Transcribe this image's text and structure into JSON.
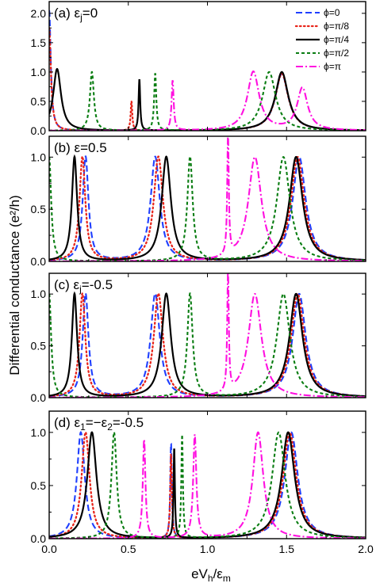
{
  "figure": {
    "ylabel": "Differential conductance (e²/h)",
    "xlabel_parts": {
      "main": "eV",
      "sub1": "h",
      "slash": "/ε",
      "sub2": "m"
    }
  },
  "colors": {
    "phi0": "#1f3fff",
    "phi_pi8": "#e8241a",
    "phi_pi4": "#000000",
    "phi_pi2": "#0a7d12",
    "phi_pi": "#ff10e0"
  },
  "chart_data": [
    {
      "type": "line",
      "panel_label": "(a) εj=0",
      "label_parts": {
        "pre": "(a) ε",
        "sub": "j",
        "post": "=0"
      },
      "xlim": [
        0,
        2.0
      ],
      "ylim": [
        0,
        2.2
      ],
      "xticks": [
        0.0,
        0.5,
        1.0,
        1.5,
        2.0
      ],
      "yticks": [
        0.0,
        0.5,
        1.0,
        1.5,
        2.0
      ],
      "xticklabels": [
        "0.0",
        "0.5",
        "1.0",
        "1.5",
        "2.0"
      ],
      "yticklabels": [
        "0.0",
        "0.5",
        "1.0",
        "1.5",
        "2.0"
      ],
      "legend": {
        "placement": "top-right",
        "entries": [
          "ϕ=0",
          "ϕ=π/8",
          "ϕ=π/4",
          "ϕ=π/2",
          "ϕ=π"
        ]
      },
      "series": [
        {
          "name": "ϕ=0",
          "style": "dash",
          "color": "#1f3fff",
          "peaks": [
            [
              0.0,
              2.05,
              0.012
            ],
            [
              1.47,
              0.97,
              0.05
            ]
          ]
        },
        {
          "name": "ϕ=π/8",
          "style": "dot",
          "color": "#e8241a",
          "peaks": [
            [
              0.0,
              1.75,
              0.013
            ],
            [
              0.52,
              0.5,
              0.006
            ],
            [
              1.47,
              0.97,
              0.05
            ]
          ]
        },
        {
          "name": "ϕ=π/4",
          "style": "solid",
          "color": "#000000",
          "peaks": [
            [
              0.05,
              1.05,
              0.03
            ],
            [
              0.57,
              0.87,
              0.006
            ],
            [
              1.47,
              1.0,
              0.05
            ]
          ]
        },
        {
          "name": "ϕ=π/2",
          "style": "dash-short",
          "color": "#0a7d12",
          "peaks": [
            [
              0.27,
              1.0,
              0.015
            ],
            [
              0.67,
              0.97,
              0.008
            ],
            [
              1.39,
              1.0,
              0.05
            ]
          ]
        },
        {
          "name": "ϕ=π",
          "style": "dash-dot",
          "color": "#ff10e0",
          "peaks": [
            [
              0.78,
              0.85,
              0.008
            ],
            [
              1.29,
              1.0,
              0.045
            ],
            [
              1.6,
              0.72,
              0.04
            ]
          ]
        }
      ]
    },
    {
      "type": "line",
      "panel_label": "(b) εj=0.5",
      "label_parts": {
        "pre": "(b) ε",
        "sub": "",
        "post": "=0.5"
      },
      "xlim": [
        0,
        2.0
      ],
      "ylim": [
        0,
        1.2
      ],
      "xticks": [
        0.0,
        0.5,
        1.0,
        1.5,
        2.0
      ],
      "yticks": [
        0.0,
        0.5,
        1.0
      ],
      "xticklabels": [
        "0.0",
        "0.5",
        "1.0",
        "1.5",
        "2.0"
      ],
      "yticklabels": [
        "0.0",
        "0.5",
        "1.0"
      ],
      "series": [
        {
          "name": "ϕ=0",
          "style": "dash",
          "color": "#1f3fff",
          "peaks": [
            [
              0.23,
              1.0,
              0.022
            ],
            [
              0.67,
              1.0,
              0.035
            ],
            [
              1.58,
              1.0,
              0.05
            ]
          ]
        },
        {
          "name": "ϕ=π/8",
          "style": "dot",
          "color": "#e8241a",
          "peaks": [
            [
              0.21,
              1.0,
              0.022
            ],
            [
              0.69,
              1.0,
              0.035
            ],
            [
              1.57,
              1.0,
              0.05
            ]
          ]
        },
        {
          "name": "ϕ=π/4",
          "style": "solid",
          "color": "#000000",
          "peaks": [
            [
              0.16,
              1.0,
              0.02
            ],
            [
              0.74,
              1.0,
              0.035
            ],
            [
              1.56,
              1.0,
              0.05
            ]
          ]
        },
        {
          "name": "ϕ=π/2",
          "style": "dash-short",
          "color": "#0a7d12",
          "peaks": [
            [
              0.0,
              1.0,
              0.015
            ],
            [
              0.89,
              1.0,
              0.02
            ],
            [
              1.48,
              1.0,
              0.05
            ]
          ]
        },
        {
          "name": "ϕ=π",
          "style": "dash-dot",
          "color": "#ff10e0",
          "peaks": [
            [
              1.13,
              1.15,
              0.006
            ],
            [
              1.3,
              1.0,
              0.05
            ]
          ]
        }
      ]
    },
    {
      "type": "line",
      "panel_label": "(c) εj=-0.5",
      "label_parts": {
        "pre": "(c) ε",
        "sub": "j",
        "post": "=-0.5"
      },
      "xlim": [
        0,
        2.0
      ],
      "ylim": [
        0,
        1.2
      ],
      "xticks": [
        0.0,
        0.5,
        1.0,
        1.5,
        2.0
      ],
      "yticks": [
        0.0,
        0.5,
        1.0
      ],
      "xticklabels": [
        "0.0",
        "0.5",
        "1.0",
        "1.5",
        "2.0"
      ],
      "yticklabels": [
        "0.0",
        "0.5",
        "1.0"
      ],
      "series": [
        {
          "name": "ϕ=0",
          "style": "dash",
          "color": "#1f3fff",
          "peaks": [
            [
              0.23,
              1.0,
              0.022
            ],
            [
              0.67,
              1.0,
              0.035
            ],
            [
              1.58,
              1.0,
              0.05
            ]
          ]
        },
        {
          "name": "ϕ=π/8",
          "style": "dot",
          "color": "#e8241a",
          "peaks": [
            [
              0.21,
              1.0,
              0.022
            ],
            [
              0.69,
              1.0,
              0.035
            ],
            [
              1.57,
              1.0,
              0.05
            ]
          ]
        },
        {
          "name": "ϕ=π/4",
          "style": "solid",
          "color": "#000000",
          "peaks": [
            [
              0.16,
              1.0,
              0.02
            ],
            [
              0.74,
              1.0,
              0.035
            ],
            [
              1.56,
              1.0,
              0.05
            ]
          ]
        },
        {
          "name": "ϕ=π/2",
          "style": "dash-short",
          "color": "#0a7d12",
          "peaks": [
            [
              0.0,
              1.0,
              0.015
            ],
            [
              0.89,
              1.0,
              0.02
            ],
            [
              1.48,
              1.0,
              0.05
            ]
          ]
        },
        {
          "name": "ϕ=π",
          "style": "dash-dot",
          "color": "#ff10e0",
          "peaks": [
            [
              1.13,
              1.15,
              0.006
            ],
            [
              1.3,
              1.0,
              0.05
            ]
          ]
        }
      ]
    },
    {
      "type": "line",
      "panel_label": "(d) ε1=-ε2=-0.5",
      "label_parts": {
        "pre": "(d) ε",
        "sub": "1",
        "post": "=−ε",
        "sub2": "2",
        "post2": "=-0.5"
      },
      "xlim": [
        0,
        2.0
      ],
      "ylim": [
        0,
        1.2
      ],
      "xticks": [
        0.0,
        0.5,
        1.0,
        1.5,
        2.0
      ],
      "yticks": [
        0.0,
        0.5,
        1.0
      ],
      "xticklabels": [
        "0.0",
        "0.5",
        "1.0",
        "1.5",
        "2.0"
      ],
      "yticklabels": [
        "0.0",
        "0.5",
        "1.0"
      ],
      "series": [
        {
          "name": "ϕ=0",
          "style": "dash",
          "color": "#1f3fff",
          "peaks": [
            [
              0.2,
              1.0,
              0.03
            ],
            [
              0.77,
              0.9,
              0.006
            ],
            [
              1.53,
              1.0,
              0.05
            ]
          ]
        },
        {
          "name": "ϕ=π/8",
          "style": "dot",
          "color": "#e8241a",
          "peaks": [
            [
              0.23,
              1.0,
              0.03
            ],
            [
              0.77,
              0.8,
              0.006
            ],
            [
              1.52,
              1.0,
              0.05
            ]
          ]
        },
        {
          "name": "ϕ=π/4",
          "style": "solid",
          "color": "#000000",
          "peaks": [
            [
              0.27,
              1.0,
              0.035
            ],
            [
              0.79,
              0.85,
              0.005
            ],
            [
              1.51,
              1.0,
              0.05
            ]
          ]
        },
        {
          "name": "ϕ=π/2",
          "style": "dash-short",
          "color": "#0a7d12",
          "peaks": [
            [
              0.41,
              1.0,
              0.02
            ],
            [
              0.84,
              0.97,
              0.006
            ],
            [
              1.45,
              1.0,
              0.05
            ]
          ]
        },
        {
          "name": "ϕ=π",
          "style": "dash-dot",
          "color": "#ff10e0",
          "peaks": [
            [
              0.6,
              0.93,
              0.01
            ],
            [
              0.92,
              0.97,
              0.012
            ],
            [
              1.32,
              1.0,
              0.04
            ]
          ]
        }
      ]
    }
  ]
}
